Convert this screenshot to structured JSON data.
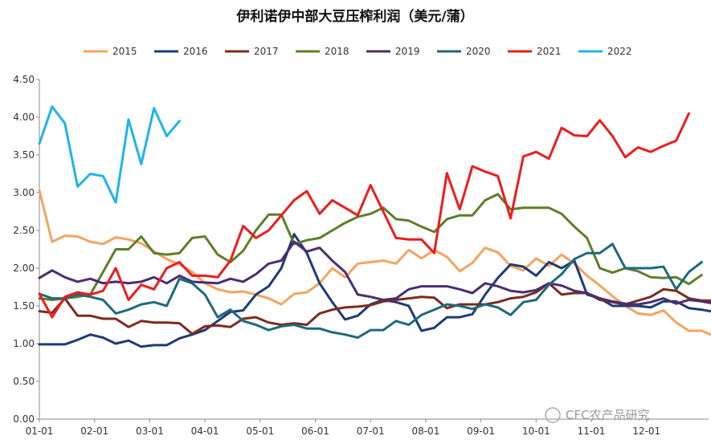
{
  "chart_data": {
    "type": "line",
    "title": "伊利诺伊中部大豆压榨利润（美元/蒲）",
    "xlabel": "",
    "ylabel": "",
    "ylim": [
      0,
      4.5
    ],
    "y_ticks": [
      "0.00",
      "0.50",
      "1.00",
      "1.50",
      "2.00",
      "2.50",
      "3.00",
      "3.50",
      "4.00",
      "4.50"
    ],
    "x_ticks": [
      "01-01",
      "02-01",
      "03-01",
      "04-01",
      "05-01",
      "06-01",
      "07-01",
      "08-01",
      "09-01",
      "10-01",
      "11-01",
      "12-01"
    ],
    "x_unit": "week of year (0 = 01-01)",
    "grid": false,
    "legend_position": "top",
    "series": [
      {
        "name": "2015",
        "color": "#F4A460",
        "values": [
          3.03,
          2.35,
          2.43,
          2.42,
          2.35,
          2.32,
          2.41,
          2.38,
          2.33,
          2.22,
          2.12,
          2.05,
          1.95,
          1.8,
          1.72,
          1.68,
          1.69,
          1.65,
          1.6,
          1.52,
          1.66,
          1.68,
          1.8,
          2.0,
          1.88,
          2.06,
          2.08,
          2.1,
          2.06,
          2.24,
          2.13,
          2.24,
          2.15,
          1.96,
          2.07,
          2.27,
          2.21,
          2.03,
          1.97,
          2.13,
          2.03,
          2.18,
          2.06,
          1.9,
          1.77,
          1.63,
          1.5,
          1.4,
          1.38,
          1.44,
          1.28,
          1.17,
          1.17,
          1.1
        ]
      },
      {
        "name": "2016",
        "color": "#1F3B73",
        "values": [
          0.99,
          0.99,
          0.99,
          1.05,
          1.12,
          1.08,
          1.0,
          1.04,
          0.96,
          0.98,
          0.98,
          1.07,
          1.12,
          1.18,
          1.3,
          1.42,
          1.44,
          1.65,
          1.76,
          2.0,
          2.45,
          2.2,
          1.8,
          1.55,
          1.32,
          1.37,
          1.52,
          1.58,
          1.55,
          1.5,
          1.17,
          1.21,
          1.35,
          1.35,
          1.39,
          1.65,
          1.87,
          2.05,
          2.02,
          1.9,
          2.08,
          2.0,
          2.1,
          1.65,
          1.6,
          1.5,
          1.5,
          1.5,
          1.48,
          1.56,
          1.56,
          1.47,
          1.45,
          1.42
        ]
      },
      {
        "name": "2017",
        "color": "#7B2C1E",
        "values": [
          1.43,
          1.41,
          1.6,
          1.37,
          1.37,
          1.33,
          1.33,
          1.22,
          1.3,
          1.28,
          1.28,
          1.27,
          1.13,
          1.23,
          1.24,
          1.22,
          1.33,
          1.35,
          1.28,
          1.25,
          1.27,
          1.25,
          1.4,
          1.45,
          1.48,
          1.49,
          1.51,
          1.56,
          1.58,
          1.6,
          1.62,
          1.61,
          1.47,
          1.52,
          1.52,
          1.52,
          1.55,
          1.6,
          1.62,
          1.68,
          1.8,
          1.65,
          1.67,
          1.67,
          1.58,
          1.55,
          1.52,
          1.57,
          1.62,
          1.72,
          1.7,
          1.6,
          1.57,
          1.57
        ]
      },
      {
        "name": "2018",
        "color": "#5B7F2A",
        "values": [
          1.6,
          1.58,
          1.6,
          1.62,
          1.65,
          1.95,
          2.25,
          2.25,
          2.42,
          2.2,
          2.18,
          2.2,
          2.4,
          2.42,
          2.18,
          2.08,
          2.23,
          2.5,
          2.71,
          2.71,
          2.32,
          2.37,
          2.4,
          2.5,
          2.6,
          2.68,
          2.72,
          2.8,
          2.65,
          2.63,
          2.55,
          2.48,
          2.65,
          2.7,
          2.7,
          2.9,
          2.98,
          2.78,
          2.8,
          2.8,
          2.8,
          2.72,
          2.55,
          2.4,
          2.0,
          1.94,
          2.0,
          1.96,
          1.88,
          1.87,
          1.88,
          1.79,
          1.91
        ]
      },
      {
        "name": "2019",
        "color": "#4B2D73",
        "values": [
          1.87,
          1.97,
          1.88,
          1.82,
          1.86,
          1.8,
          1.82,
          1.8,
          1.82,
          1.88,
          1.8,
          1.9,
          1.82,
          1.81,
          1.8,
          1.86,
          1.82,
          1.92,
          2.06,
          2.1,
          2.35,
          2.22,
          2.27,
          2.1,
          1.95,
          1.65,
          1.62,
          1.58,
          1.6,
          1.72,
          1.76,
          1.76,
          1.76,
          1.72,
          1.67,
          1.8,
          1.76,
          1.7,
          1.68,
          1.71,
          1.8,
          1.77,
          1.7,
          1.67,
          1.6,
          1.56,
          1.53,
          1.52,
          1.55,
          1.6,
          1.53,
          1.58,
          1.56,
          1.53
        ]
      },
      {
        "name": "2020",
        "color": "#1E6A7A",
        "values": [
          1.66,
          1.6,
          1.6,
          1.65,
          1.62,
          1.58,
          1.4,
          1.45,
          1.52,
          1.55,
          1.5,
          1.86,
          1.8,
          1.65,
          1.35,
          1.45,
          1.3,
          1.25,
          1.18,
          1.23,
          1.25,
          1.2,
          1.2,
          1.15,
          1.12,
          1.08,
          1.18,
          1.18,
          1.3,
          1.25,
          1.38,
          1.45,
          1.52,
          1.5,
          1.46,
          1.52,
          1.48,
          1.38,
          1.55,
          1.58,
          1.78,
          1.92,
          2.12,
          2.2,
          2.2,
          2.32,
          2.0,
          2.0,
          2.0,
          2.02,
          1.72,
          1.95,
          2.08
        ]
      },
      {
        "name": "2021",
        "color": "#EE1C1C",
        "values": [
          1.66,
          1.35,
          1.62,
          1.68,
          1.65,
          1.7,
          2.0,
          1.58,
          1.78,
          1.72,
          2.0,
          2.08,
          1.9,
          1.9,
          1.88,
          2.1,
          2.56,
          2.4,
          2.5,
          2.7,
          2.9,
          3.02,
          2.72,
          2.9,
          2.8,
          2.7,
          3.1,
          2.75,
          2.4,
          2.38,
          2.38,
          2.2,
          3.26,
          2.78,
          3.35,
          3.28,
          3.22,
          2.66,
          3.48,
          3.54,
          3.45,
          3.86,
          3.76,
          3.75,
          3.96,
          3.75,
          3.47,
          3.6,
          3.54,
          3.62,
          3.69,
          4.05
        ]
      },
      {
        "name": "2022",
        "color": "#1FB4EA",
        "values": [
          3.65,
          4.14,
          3.92,
          3.08,
          3.25,
          3.22,
          2.87,
          3.97,
          3.38,
          4.12,
          3.75,
          3.95
        ]
      }
    ],
    "watermark": "CFC农产品研究"
  }
}
